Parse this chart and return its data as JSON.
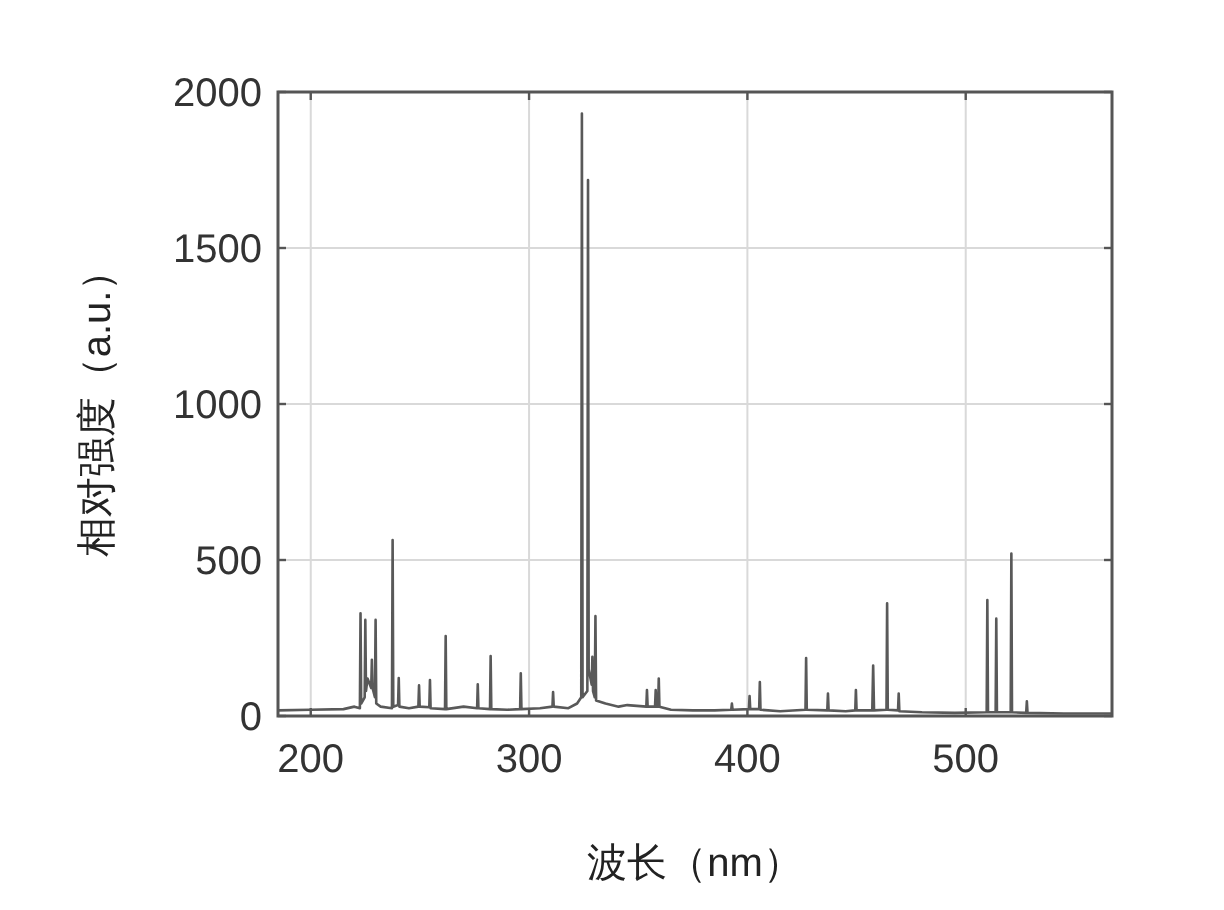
{
  "chart_data": {
    "type": "line",
    "xlabel": "波长（nm）",
    "ylabel": "相对强度（a.u.）",
    "color": "#595959",
    "xlim": [
      185,
      567
    ],
    "ylim": [
      0,
      2000
    ],
    "xticks": [
      200,
      300,
      400,
      500
    ],
    "yticks": [
      0,
      500,
      1000,
      1500,
      2000
    ],
    "grid": true,
    "x": [
      185,
      200,
      215,
      220,
      222.5,
      222.8,
      223.1,
      224.7,
      225,
      225.3,
      226,
      227.7,
      228,
      228.3,
      229.4,
      229.7,
      230,
      232,
      237.2,
      237.5,
      237.8,
      240,
      240.3,
      240.6,
      245,
      249.3,
      249.6,
      249.9,
      254.3,
      254.6,
      254.9,
      261.5,
      261.8,
      262.1,
      270,
      276.2,
      276.5,
      276.8,
      282.1,
      282.4,
      282.7,
      290,
      295.9,
      296.2,
      296.5,
      305,
      310.7,
      311,
      311.3,
      318,
      322,
      323.9,
      324.2,
      324.5,
      326.7,
      327,
      327.3,
      328.7,
      329,
      329.3,
      330.1,
      330.4,
      330.7,
      335,
      341,
      345,
      353.7,
      354,
      354.3,
      357.7,
      358,
      358.3,
      359.1,
      359.4,
      359.7,
      365,
      375,
      385,
      392.6,
      392.9,
      393.2,
      400.7,
      401,
      401.3,
      405.4,
      405.7,
      406,
      415,
      426.6,
      426.9,
      427.2,
      436.6,
      436.9,
      437.2,
      445,
      449.4,
      449.7,
      450,
      457.2,
      457.6,
      458,
      463.7,
      464,
      464.3,
      469,
      469.3,
      469.6,
      480,
      495,
      509.6,
      509.9,
      510.2,
      513.7,
      514,
      514.3,
      520.6,
      520.9,
      521.2,
      527.7,
      528,
      528.3,
      545,
      567
    ],
    "values": [
      18,
      20,
      22,
      30,
      25,
      329,
      40,
      60,
      308,
      80,
      120,
      90,
      180,
      90,
      60,
      308,
      40,
      30,
      25,
      564,
      30,
      35,
      122,
      30,
      25,
      30,
      98,
      30,
      28,
      115,
      25,
      22,
      256,
      22,
      30,
      25,
      102,
      25,
      22,
      192,
      22,
      20,
      22,
      137,
      22,
      25,
      30,
      77,
      30,
      25,
      40,
      60,
      1931,
      60,
      80,
      1718,
      150,
      100,
      190,
      80,
      60,
      320,
      50,
      40,
      30,
      35,
      30,
      83,
      30,
      30,
      83,
      30,
      30,
      120,
      30,
      20,
      18,
      18,
      20,
      40,
      20,
      22,
      64,
      22,
      22,
      109,
      20,
      15,
      20,
      186,
      20,
      18,
      72,
      18,
      15,
      18,
      83,
      18,
      18,
      162,
      18,
      20,
      361,
      20,
      18,
      72,
      15,
      12,
      10,
      12,
      372,
      12,
      12,
      312,
      12,
      12,
      521,
      12,
      10,
      47,
      10,
      8,
      8
    ]
  }
}
